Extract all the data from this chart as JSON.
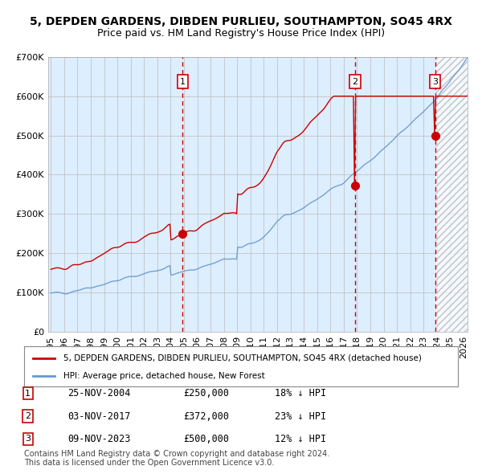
{
  "title": "5, DEPDEN GARDENS, DIBDEN PURLIEU, SOUTHAMPTON, SO45 4RX",
  "subtitle": "Price paid vs. HM Land Registry's House Price Index (HPI)",
  "ylabel": "",
  "bg_color": "#ffffff",
  "plot_bg_color": "#ddeeff",
  "hatch_color": "#cccccc",
  "grid_color": "#bbbbbb",
  "hpi_color": "#6699cc",
  "price_color": "#cc0000",
  "sale_marker_color": "#cc0000",
  "vline_color": "#cc0000",
  "ylim": [
    0,
    700000
  ],
  "yticks": [
    0,
    100000,
    200000,
    300000,
    400000,
    500000,
    600000,
    700000
  ],
  "ytick_labels": [
    "£0",
    "£100K",
    "£200K",
    "£300K",
    "£400K",
    "£500K",
    "£600K",
    "£700K"
  ],
  "x_start_year": 1995,
  "x_end_year": 2026,
  "sale_dates": [
    2004.9,
    2017.84,
    2023.86
  ],
  "sale_prices": [
    250000,
    372000,
    500000
  ],
  "sale_labels": [
    "1",
    "2",
    "3"
  ],
  "sale_info": [
    [
      "1",
      "25-NOV-2004",
      "£250,000",
      "18% ↓ HPI"
    ],
    [
      "2",
      "03-NOV-2017",
      "£372,000",
      "23% ↓ HPI"
    ],
    [
      "3",
      "09-NOV-2023",
      "£500,000",
      "12% ↓ HPI"
    ]
  ],
  "legend_entries": [
    "5, DEPDEN GARDENS, DIBDEN PURLIEU, SOUTHAMPTON, SO45 4RX (detached house)",
    "HPI: Average price, detached house, New Forest"
  ],
  "footnote": "Contains HM Land Registry data © Crown copyright and database right 2024.\nThis data is licensed under the Open Government Licence v3.0.",
  "title_fontsize": 10,
  "subtitle_fontsize": 9,
  "tick_fontsize": 8,
  "legend_fontsize": 8,
  "table_fontsize": 8.5
}
